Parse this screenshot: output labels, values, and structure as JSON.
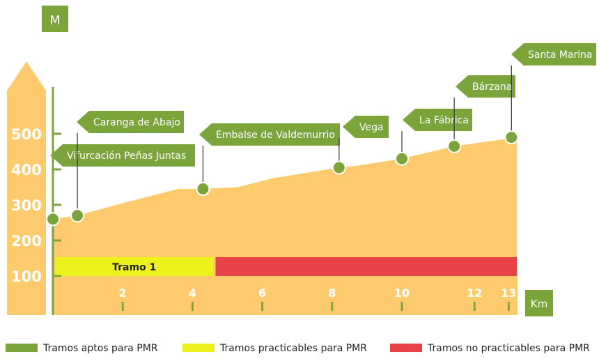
{
  "colors": {
    "fill": "#FDCB6E",
    "green": "#7BA43B",
    "yellow": "#EEF21C",
    "red": "#E84448"
  },
  "chart_data": {
    "type": "area",
    "ylabel": "M",
    "xlabel": "Km",
    "x_ticks": [
      2,
      4,
      6,
      8,
      10,
      12,
      13
    ],
    "y_ticks": [
      100,
      200,
      300,
      400,
      500
    ],
    "xlim": [
      0,
      13.3
    ],
    "ylim": [
      0,
      650
    ],
    "profile": [
      {
        "x": 0,
        "y": 260
      },
      {
        "x": 0.7,
        "y": 270
      },
      {
        "x": 2,
        "y": 305
      },
      {
        "x": 3.6,
        "y": 345
      },
      {
        "x": 4.3,
        "y": 345
      },
      {
        "x": 5.3,
        "y": 350
      },
      {
        "x": 6.3,
        "y": 375
      },
      {
        "x": 8.2,
        "y": 405
      },
      {
        "x": 8.7,
        "y": 410
      },
      {
        "x": 10,
        "y": 430
      },
      {
        "x": 11.5,
        "y": 465
      },
      {
        "x": 13.3,
        "y": 490
      }
    ],
    "waypoints": [
      {
        "name": "Vifurcación Peñas Juntas",
        "x": 0,
        "y": 260
      },
      {
        "name": "Caranga de Abajo",
        "x": 0.7,
        "y": 270
      },
      {
        "name": "Embalse de Valdemurrio",
        "x": 4.3,
        "y": 345
      },
      {
        "name": "Vega",
        "x": 8.2,
        "y": 405
      },
      {
        "name": "La Fábrica",
        "x": 10,
        "y": 430
      },
      {
        "name": "Bárzana",
        "x": 11.5,
        "y": 465
      },
      {
        "name": "Santa Marina",
        "x": 13.3,
        "y": 490
      }
    ],
    "tramos": [
      {
        "label": "Tramo 1",
        "x_start": 0,
        "x_end": 4.6,
        "color": "yellow"
      },
      {
        "label": "",
        "x_start": 4.6,
        "x_end": 13.3,
        "color": "red"
      }
    ],
    "legend": [
      {
        "label": "Tramos aptos para PMR",
        "color": "#7BA43B"
      },
      {
        "label": "Tramos practicables para PMR",
        "color": "#EEF21C"
      },
      {
        "label": "Tramos no practicables para PMR",
        "color": "#E84448"
      }
    ]
  }
}
